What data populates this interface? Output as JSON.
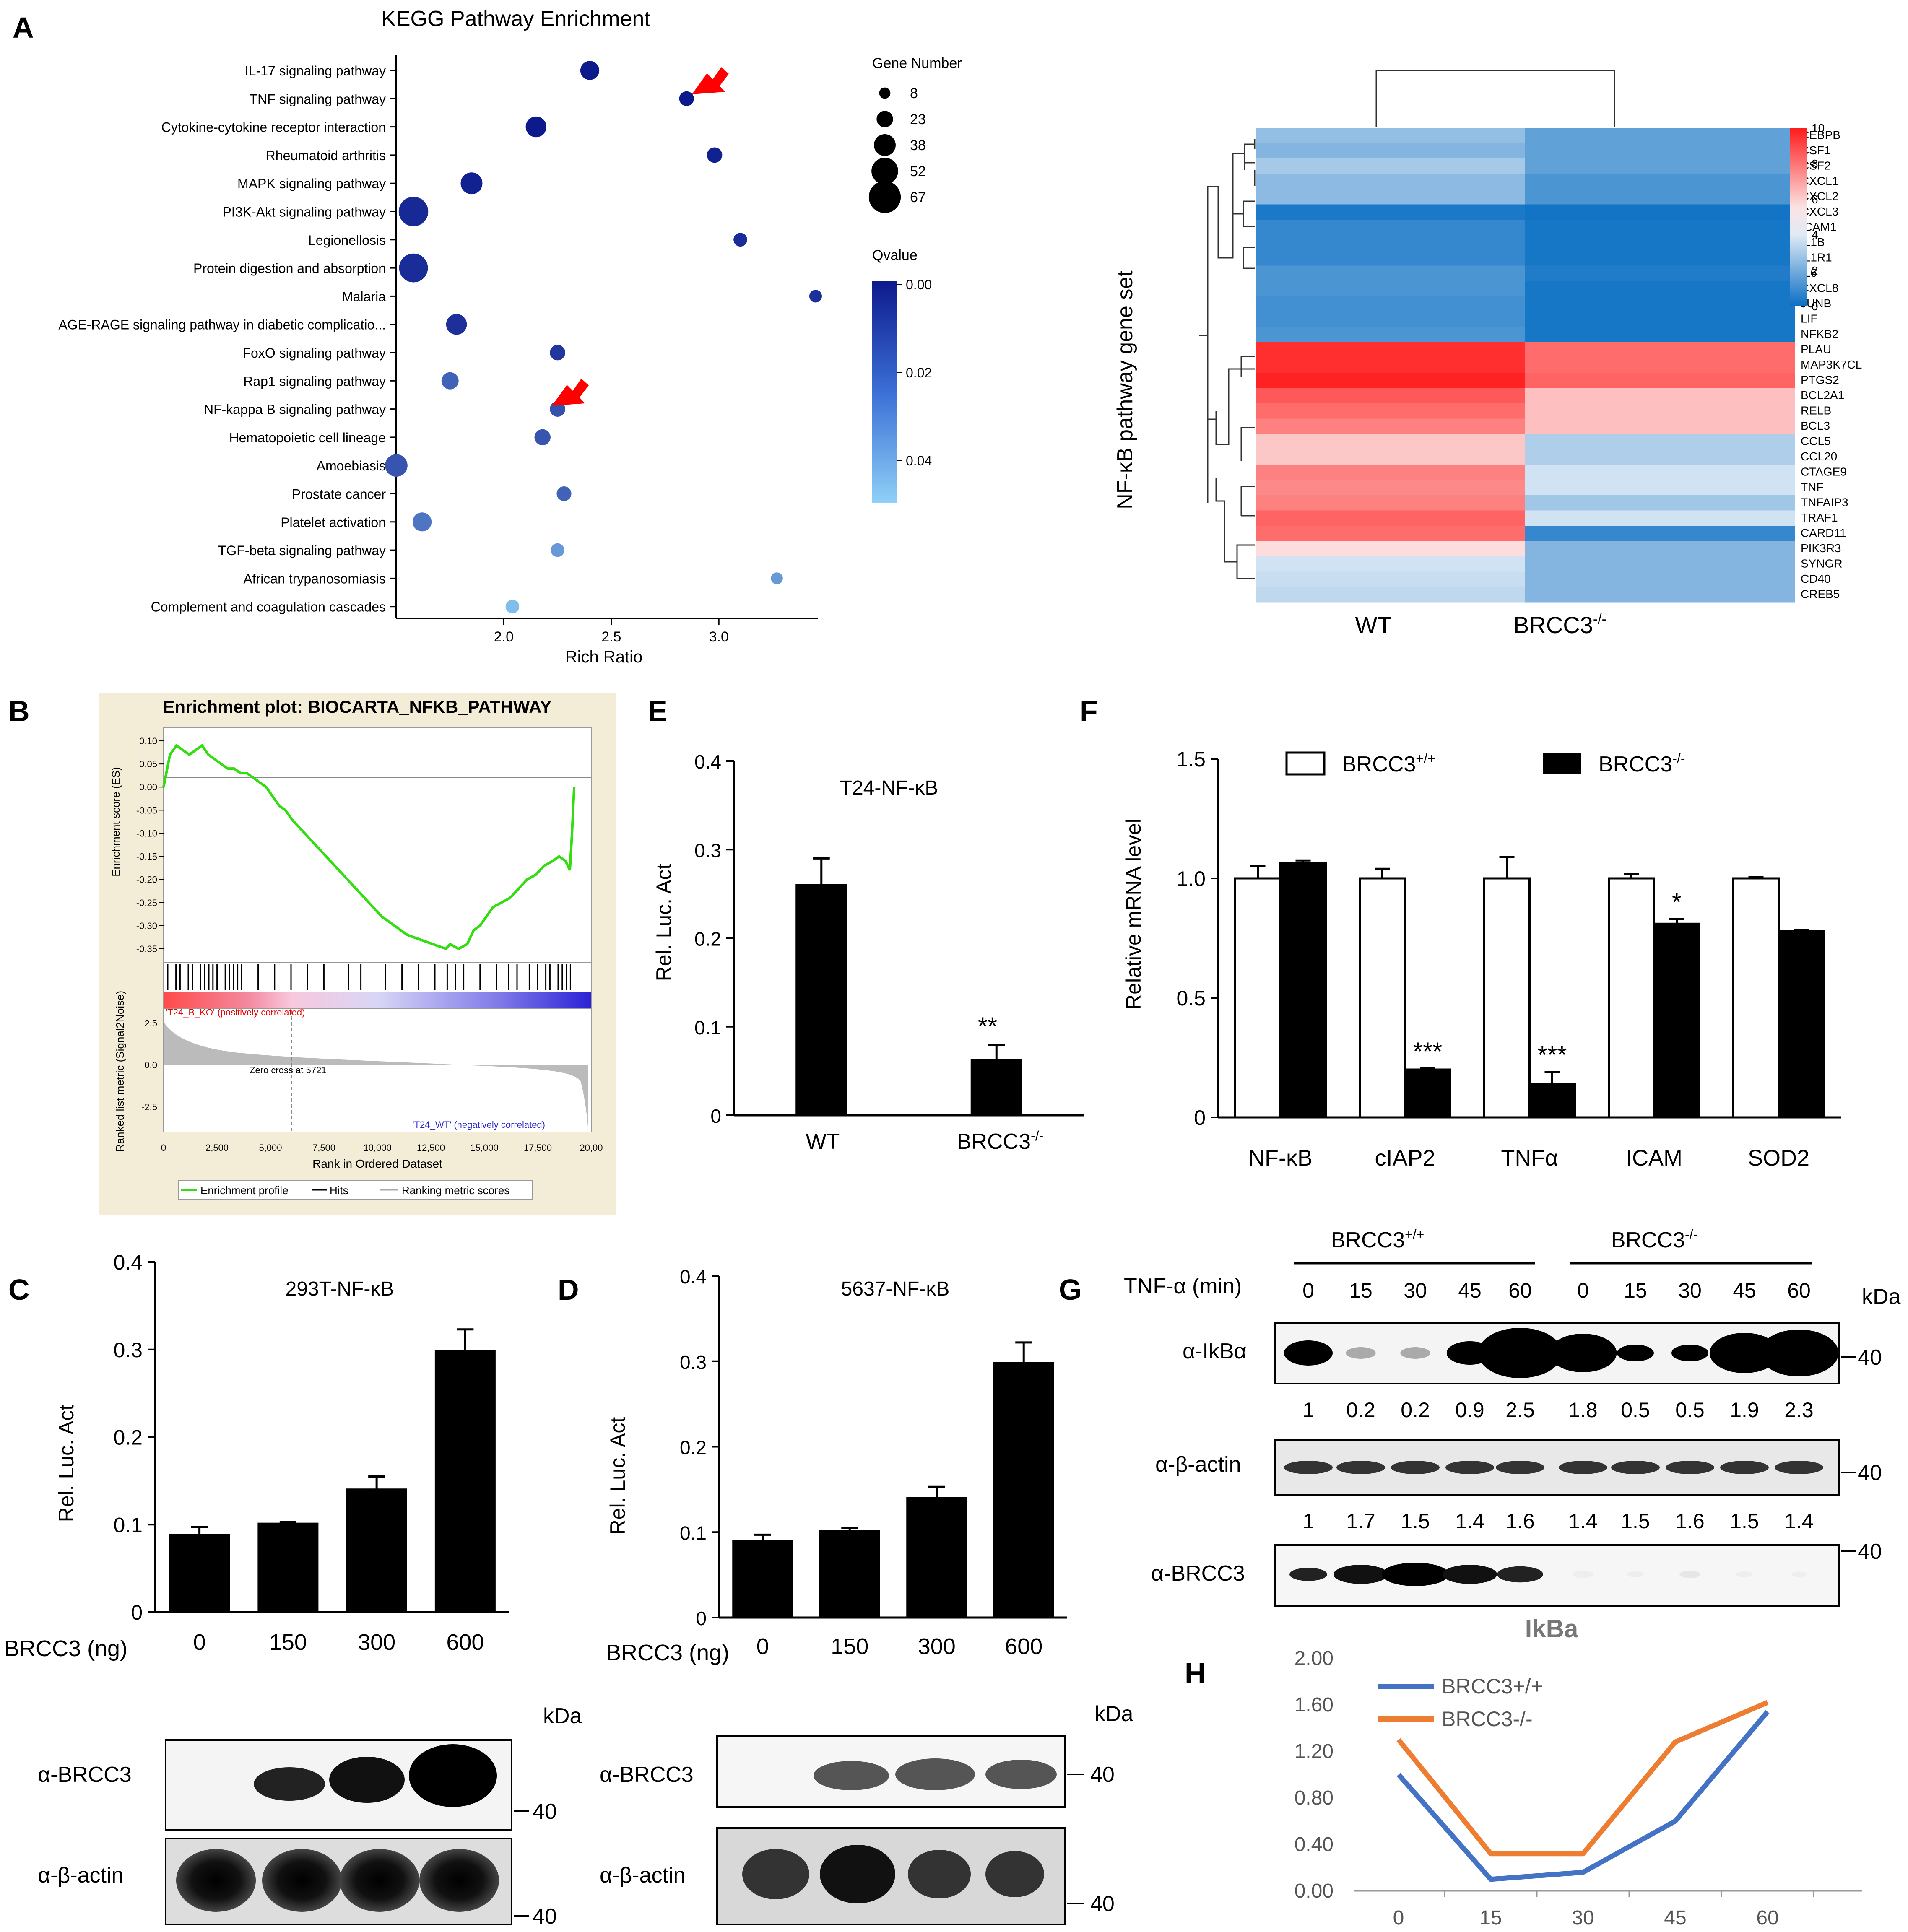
{
  "colors": {
    "bar_black": "#000000",
    "gsea_green": "#33dd11",
    "kegg_dark": "#0d1a8c",
    "kegg_light": "#7ec8f4",
    "heat_red": "#ff1a1a",
    "heat_blue": "#0a6fc4",
    "arrow_red": "#ff0000",
    "line_blue": "#4472c4",
    "line_orange": "#ed7d31",
    "panel_bg": "#f3edd8"
  },
  "panels": {
    "A": "A",
    "B": "B",
    "C": "C",
    "D": "D",
    "E": "E",
    "F": "F",
    "G": "G",
    "H": "H"
  },
  "kegg": {
    "title": "KEGG  Pathway  Enrichment",
    "xlabel": "Rich Ratio",
    "xticks": [
      "2.0",
      "2.5",
      "3.0"
    ],
    "legend_size_title": "Gene Number",
    "legend_sizes": [
      "8",
      "23",
      "38",
      "52",
      "67"
    ],
    "legend_q_title": "Qvalue",
    "legend_q_ticks": [
      "0.00",
      "0.02",
      "0.04"
    ],
    "pathways": [
      "IL-17 signaling pathway",
      "TNF signaling pathway",
      "Cytokine-cytokine receptor interaction",
      "Rheumatoid arthritis",
      "MAPK signaling pathway",
      "PI3K-Akt signaling pathway",
      "Legionellosis",
      "Protein digestion and absorption",
      "Malaria",
      "AGE-RAGE signaling pathway in diabetic complicatio...",
      "FoxO signaling pathway",
      "Rap1 signaling pathway",
      "NF-kappa B signaling pathway",
      "Hematopoietic cell lineage",
      "Amoebiasis",
      "Prostate cancer",
      "Platelet activation",
      "TGF-beta signaling pathway",
      "African trypanosomiasis",
      "Complement and coagulation cascades"
    ]
  },
  "heatmap": {
    "ylabel": "NF-κB pathway  gene  set",
    "col_wt": "WT",
    "col_ko": "BRCC3",
    "col_ko_sup": "-/-",
    "scale_ticks": [
      "10",
      "8",
      "6",
      "4",
      "2",
      "0"
    ],
    "genes": [
      "CEBPB",
      "CSF1",
      "CSF2",
      "CXCL1",
      "CXCL2",
      "CXCL3",
      "ICAM1",
      "IL1B",
      "IL1R1",
      "IL6",
      "CXCL8",
      "JUNB",
      "LIF",
      "NFKB2",
      "PLAU",
      "MAP3K7CL",
      "PTGS2",
      "BCL2A1",
      "RELB",
      "BCL3",
      "CCL5",
      "CCL20",
      "CTAGE9",
      "TNF",
      "TNFAIP3",
      "TRAF1",
      "CARD11",
      "PIK3R3",
      "SYNGR",
      "CD40",
      "CREB5"
    ]
  },
  "gsea": {
    "title": "Enrichment plot: BIOCARTA_NFKB_PATHWAY",
    "ylabel_es": "Enrichment score (ES)",
    "ylabel_rank": "Ranked list metric (Signal2Noise)",
    "es_ticks": [
      "0.10",
      "0.05",
      "0.00",
      "-0.05",
      "-0.10",
      "-0.15",
      "-0.20",
      "-0.25",
      "-0.30",
      "-0.35"
    ],
    "metric_ticks": [
      "2.5",
      "0.0",
      "-2.5"
    ],
    "pos_label": "'T24_B_KO' (positively correlated)",
    "neg_label": "'T24_WT' (negatively correlated)",
    "zero_cross": "Zero cross at 5721",
    "xlabel": "Rank in Ordered Dataset",
    "xticks": [
      "0",
      "2,500",
      "5,000",
      "7,500",
      "10,000",
      "12,500",
      "15,000",
      "17,500",
      "20,00"
    ],
    "legend": [
      "Enrichment profile",
      "Hits",
      "Ranking metric scores"
    ]
  },
  "panel_c": {
    "title": "293T-NF-κB",
    "ylabel": "Rel. Luc. Act",
    "xlabel_prefix": "BRCC3  (ng)",
    "blot_label1": "α-BRCC3",
    "blot_label2": "α-β-actin",
    "kda": "kDa",
    "mw": "40",
    "mw2": "40"
  },
  "panel_d": {
    "title": "5637-NF-κB",
    "ylabel": "Rel. Luc. Act",
    "xlabel_prefix": "BRCC3  (ng)",
    "blot_label1": "α-BRCC3",
    "blot_label2": "α-β-actin",
    "kda": "kDa",
    "mw": "40",
    "mw2": "40"
  },
  "panel_e": {
    "title": "T24-NF-κB",
    "ylabel": "Rel. Luc. Act",
    "xlabel_wt": "WT",
    "xlabel_ko": "BRCC3",
    "ko_sup": "-/-",
    "sig": "**"
  },
  "panel_f": {
    "ylabel": "Relative mRNA level",
    "legend_wt": "BRCC3",
    "legend_wt_sup": "+/+",
    "legend_ko": "BRCC3",
    "legend_ko_sup": "-/-",
    "sig": [
      "",
      "***",
      "***",
      "*",
      ""
    ]
  },
  "panel_g": {
    "group1": "BRCC3",
    "group1_sup": "+/+",
    "group2": "BRCC3",
    "group2_sup": "-/-",
    "tnf_label": "TNF-α (min)",
    "times": [
      "0",
      "15",
      "30",
      "45",
      "60",
      "0",
      "15",
      "30",
      "45",
      "60"
    ],
    "kda": "kDa",
    "row1_label": "α-IkBα",
    "row1_vals": [
      "1",
      "0.2",
      "0.2",
      "0.9",
      "2.5",
      "1.8",
      "0.5",
      "0.5",
      "1.9",
      "2.3"
    ],
    "row2_label": "α-β-actin",
    "row2_vals": [
      "1",
      "1.7",
      "1.5",
      "1.4",
      "1.6",
      "1.4",
      "1.5",
      "1.6",
      "1.5",
      "1.4"
    ],
    "row3_label": "α-BRCC3",
    "mw": [
      "40",
      "40",
      "40"
    ]
  },
  "chart_data": [
    {
      "id": "kegg",
      "type": "scatter",
      "title": "KEGG  Pathway  Enrichment",
      "xlabel": "Rich Ratio",
      "xlim": [
        1.5,
        3.45
      ],
      "categories": [
        "IL-17 signaling pathway",
        "TNF signaling pathway",
        "Cytokine-cytokine receptor interaction",
        "Rheumatoid arthritis",
        "MAPK signaling pathway",
        "PI3K-Akt signaling pathway",
        "Legionellosis",
        "Protein digestion and absorption",
        "Malaria",
        "AGE-RAGE signaling pathway in diabetic complicatio...",
        "FoxO signaling pathway",
        "Rap1 signaling pathway",
        "NF-kappa B signaling pathway",
        "Hematopoietic cell lineage",
        "Amoebiasis",
        "Prostate cancer",
        "Platelet activation",
        "TGF-beta signaling pathway",
        "African trypanosomiasis",
        "Complement and coagulation cascades"
      ],
      "rich_ratio": [
        2.4,
        2.85,
        2.15,
        2.98,
        1.85,
        1.58,
        3.1,
        1.58,
        3.45,
        1.78,
        2.25,
        1.75,
        2.25,
        2.18,
        1.5,
        2.28,
        1.62,
        2.25,
        3.27,
        2.04
      ],
      "gene_number": [
        30,
        18,
        35,
        20,
        38,
        60,
        15,
        58,
        12,
        35,
        20,
        25,
        20,
        22,
        40,
        18,
        30,
        15,
        10,
        15
      ],
      "qvalue": [
        0.0,
        0.0,
        0.0,
        0.002,
        0.002,
        0.004,
        0.005,
        0.005,
        0.006,
        0.006,
        0.008,
        0.02,
        0.015,
        0.016,
        0.016,
        0.02,
        0.025,
        0.035,
        0.035,
        0.045
      ]
    },
    {
      "id": "heatmap",
      "type": "heatmap",
      "title": "",
      "scale": [
        0,
        10
      ],
      "columns": [
        "WT",
        "BRCC3-/-"
      ],
      "rows": [
        "CEBPB",
        "CSF1",
        "CSF2",
        "CXCL1",
        "CXCL2",
        "CXCL3",
        "ICAM1",
        "IL1B",
        "IL1R1",
        "IL6",
        "CXCL8",
        "JUNB",
        "LIF",
        "NFKB2",
        "PLAU",
        "MAP3K7CL",
        "PTGS2",
        "BCL2A1",
        "RELB",
        "BCL3",
        "CCL5",
        "CCL20",
        "CTAGE9",
        "TNF",
        "TNFAIP3",
        "TRAF1",
        "CARD11",
        "PIK3R3",
        "SYNGR",
        "CD40",
        "CREB5"
      ],
      "values": [
        [
          3.2,
          2.0
        ],
        [
          2.8,
          2.0
        ],
        [
          3.6,
          2.0
        ],
        [
          3.0,
          1.5
        ],
        [
          3.0,
          1.5
        ],
        [
          0.4,
          0.2
        ],
        [
          1.0,
          0.3
        ],
        [
          1.0,
          0.3
        ],
        [
          1.0,
          0.3
        ],
        [
          1.5,
          0.5
        ],
        [
          1.5,
          0.3
        ],
        [
          1.3,
          0.3
        ],
        [
          1.3,
          0.3
        ],
        [
          1.5,
          0.3
        ],
        [
          9.5,
          8.0
        ],
        [
          9.5,
          8.0
        ],
        [
          9.8,
          8.2
        ],
        [
          8.5,
          6.0
        ],
        [
          8.0,
          6.0
        ],
        [
          7.5,
          6.0
        ],
        [
          5.8,
          3.8
        ],
        [
          5.8,
          3.8
        ],
        [
          7.5,
          4.6
        ],
        [
          7.3,
          4.6
        ],
        [
          7.5,
          3.5
        ],
        [
          8.2,
          4.6
        ],
        [
          8.0,
          1.0
        ],
        [
          5.3,
          2.8
        ],
        [
          4.6,
          2.8
        ],
        [
          4.4,
          2.8
        ],
        [
          4.2,
          2.8
        ]
      ]
    },
    {
      "id": "gsea",
      "type": "line",
      "title": "Enrichment plot: BIOCARTA_NFKB_PATHWAY",
      "xlabel": "Rank in Ordered Dataset",
      "ylabel": "Enrichment score (ES)",
      "xlim": [
        0,
        20000
      ],
      "ylim": [
        -0.37,
        0.12
      ],
      "x": [
        0,
        300,
        600,
        900,
        1200,
        1500,
        1800,
        2100,
        2400,
        2700,
        3000,
        3300,
        3600,
        3900,
        4200,
        4500,
        4800,
        5100,
        5400,
        5700,
        6000,
        6600,
        7200,
        7800,
        8400,
        9000,
        9600,
        10200,
        10800,
        11400,
        12000,
        12600,
        13200,
        13400,
        13800,
        14200,
        14500,
        14800,
        15100,
        15400,
        15800,
        16200,
        16600,
        17000,
        17400,
        17800,
        18200,
        18500,
        18800,
        19000,
        19100,
        19200
      ],
      "y": [
        0.0,
        0.07,
        0.09,
        0.08,
        0.07,
        0.08,
        0.09,
        0.07,
        0.06,
        0.05,
        0.04,
        0.04,
        0.03,
        0.03,
        0.02,
        0.01,
        0.0,
        -0.02,
        -0.04,
        -0.05,
        -0.07,
        -0.1,
        -0.13,
        -0.16,
        -0.19,
        -0.22,
        -0.25,
        -0.28,
        -0.3,
        -0.32,
        -0.33,
        -0.34,
        -0.35,
        -0.34,
        -0.35,
        -0.34,
        -0.31,
        -0.3,
        -0.28,
        -0.26,
        -0.25,
        -0.24,
        -0.22,
        -0.2,
        -0.19,
        -0.17,
        -0.16,
        -0.15,
        -0.16,
        -0.18,
        -0.1,
        0.0
      ]
    },
    {
      "id": "C",
      "type": "bar",
      "title": "293T-NF-κB",
      "xlabel": "BRCC3  (ng)",
      "ylabel": "Rel. Luc. Act",
      "ylim": [
        0,
        0.4
      ],
      "yticks": [
        "0",
        "0.1",
        "0.2",
        "0.3",
        "0.4"
      ],
      "categories": [
        "0",
        "150",
        "300",
        "600"
      ],
      "values": [
        0.088,
        0.101,
        0.14,
        0.298
      ],
      "errors": [
        0.009,
        0.002,
        0.015,
        0.025
      ]
    },
    {
      "id": "D",
      "type": "bar",
      "title": "5637-NF-κB",
      "xlabel": "BRCC3  (ng)",
      "ylabel": "Rel. Luc. Act",
      "ylim": [
        0,
        0.4
      ],
      "yticks": [
        "0",
        "0.1",
        "0.2",
        "0.3",
        "0.4"
      ],
      "categories": [
        "0",
        "150",
        "300",
        "600"
      ],
      "values": [
        0.09,
        0.101,
        0.14,
        0.298
      ],
      "errors": [
        0.007,
        0.004,
        0.013,
        0.024
      ]
    },
    {
      "id": "E",
      "type": "bar",
      "title": "T24-NF-κB",
      "xlabel": "",
      "ylabel": "Rel. Luc. Act",
      "ylim": [
        0,
        0.4
      ],
      "yticks": [
        "0",
        "0.1",
        "0.2",
        "0.3",
        "0.4"
      ],
      "categories": [
        "WT",
        "BRCC3-/-"
      ],
      "values": [
        0.26,
        0.062
      ],
      "errors": [
        0.03,
        0.017
      ]
    },
    {
      "id": "F",
      "type": "bar",
      "title": "",
      "xlabel": "",
      "ylabel": "Relative mRNA level",
      "ylim": [
        0,
        1.5
      ],
      "yticks": [
        "0",
        "0.5",
        "1.0",
        "1.5"
      ],
      "categories": [
        "NF-κB",
        "cIAP2",
        "TNFα",
        "ICAM",
        "SOD2"
      ],
      "series": [
        {
          "name": "BRCC3+/+",
          "values": [
            1.0,
            1.0,
            1.0,
            1.0,
            1.0
          ],
          "errors": [
            0.05,
            0.04,
            0.09,
            0.02,
            0.005
          ]
        },
        {
          "name": "BRCC3-/-",
          "values": [
            1.065,
            0.2,
            0.14,
            0.81,
            0.78
          ],
          "errors": [
            0.01,
            0.005,
            0.05,
            0.02,
            0.005
          ]
        }
      ]
    },
    {
      "id": "H",
      "type": "line",
      "title": "IkBa",
      "xlabel": "",
      "ylabel": "",
      "ylim": [
        0,
        2.0
      ],
      "yticks": [
        "0.00",
        "0.40",
        "0.80",
        "1.20",
        "1.60",
        "2.00"
      ],
      "x": [
        "0",
        "15",
        "30",
        "45",
        "60"
      ],
      "series": [
        {
          "name": "BRCC3+/+",
          "values": [
            1.0,
            0.1,
            0.16,
            0.6,
            1.54
          ]
        },
        {
          "name": "BRCC3-/-",
          "values": [
            1.3,
            0.32,
            0.32,
            1.28,
            1.62
          ]
        }
      ]
    }
  ]
}
